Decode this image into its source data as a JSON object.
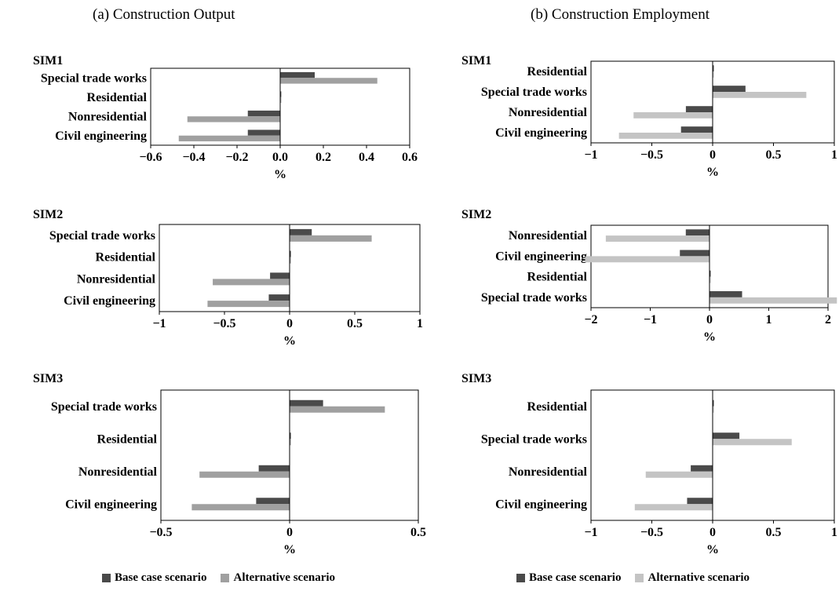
{
  "titles": {
    "left": "(a) Construction Output",
    "right": "(b) Construction Employment"
  },
  "legend": {
    "base": "Base case scenario",
    "alt": "Alternative scenario"
  },
  "colors": {
    "base": "#4a4a4a",
    "alt_output": "#a0a0a0",
    "alt_employment": "#c4c4c4"
  },
  "chart_data": [
    {
      "id": "output-sim1",
      "type": "bar",
      "orientation": "horizontal",
      "title": "SIM1",
      "xlabel": "%",
      "xlim": [
        -0.6,
        0.6
      ],
      "ticks": [
        {
          "v": -0.6,
          "t": "−0.6"
        },
        {
          "v": -0.4,
          "t": "−0.4"
        },
        {
          "v": -0.2,
          "t": "−0.2"
        },
        {
          "v": 0,
          "t": "0.0"
        },
        {
          "v": 0.2,
          "t": "0.2"
        },
        {
          "v": 0.4,
          "t": "0.4"
        },
        {
          "v": 0.6,
          "t": "0.6"
        }
      ],
      "categories": [
        "Special trade works",
        "Residential",
        "Nonresidential",
        "Civil engineering"
      ],
      "series": [
        {
          "name": "Base case scenario",
          "values": [
            0.16,
            0.005,
            -0.15,
            -0.15
          ]
        },
        {
          "name": "Alternative scenario",
          "values": [
            0.45,
            0.005,
            -0.43,
            -0.47
          ]
        }
      ]
    },
    {
      "id": "output-sim2",
      "type": "bar",
      "orientation": "horizontal",
      "title": "SIM2",
      "xlabel": "%",
      "xlim": [
        -1,
        1
      ],
      "ticks": [
        {
          "v": -1,
          "t": "−1"
        },
        {
          "v": -0.5,
          "t": "−0.5"
        },
        {
          "v": 0,
          "t": "0"
        },
        {
          "v": 0.5,
          "t": "0.5"
        },
        {
          "v": 1,
          "t": "1"
        }
      ],
      "categories": [
        "Special trade works",
        "Residential",
        "Nonresidential",
        "Civil engineering"
      ],
      "series": [
        {
          "name": "Base case scenario",
          "values": [
            0.17,
            0.01,
            -0.15,
            -0.16
          ]
        },
        {
          "name": "Alternative scenario",
          "values": [
            0.63,
            0.01,
            -0.59,
            -0.63
          ]
        }
      ]
    },
    {
      "id": "output-sim3",
      "type": "bar",
      "orientation": "horizontal",
      "title": "SIM3",
      "xlabel": "%",
      "xlim": [
        -0.5,
        0.5
      ],
      "ticks": [
        {
          "v": -0.5,
          "t": "−0.5"
        },
        {
          "v": 0,
          "t": "0"
        },
        {
          "v": 0.5,
          "t": "0.5"
        }
      ],
      "categories": [
        "Special trade works",
        "Residential",
        "Nonresidential",
        "Civil engineering"
      ],
      "series": [
        {
          "name": "Base case scenario",
          "values": [
            0.13,
            0.005,
            -0.12,
            -0.13
          ]
        },
        {
          "name": "Alternative scenario",
          "values": [
            0.37,
            0.005,
            -0.35,
            -0.38
          ]
        }
      ]
    },
    {
      "id": "employment-sim1",
      "type": "bar",
      "orientation": "horizontal",
      "title": "SIM1",
      "xlabel": "%",
      "xlim": [
        -1,
        1
      ],
      "ticks": [
        {
          "v": -1,
          "t": "−1"
        },
        {
          "v": -0.5,
          "t": "−0.5"
        },
        {
          "v": 0,
          "t": "0"
        },
        {
          "v": 0.5,
          "t": "0.5"
        },
        {
          "v": 1,
          "t": "1"
        }
      ],
      "categories": [
        "Residential",
        "Special trade works",
        "Nonresidential",
        "Civil engineering"
      ],
      "series": [
        {
          "name": "Base case scenario",
          "values": [
            0.01,
            0.27,
            -0.22,
            -0.26
          ]
        },
        {
          "name": "Alternative scenario",
          "values": [
            0.01,
            0.77,
            -0.65,
            -0.77
          ]
        }
      ]
    },
    {
      "id": "employment-sim2",
      "type": "bar",
      "orientation": "horizontal",
      "title": "SIM2",
      "xlabel": "%",
      "xlim": [
        -2,
        2
      ],
      "ticks": [
        {
          "v": -2,
          "t": "−2"
        },
        {
          "v": -1,
          "t": "−1"
        },
        {
          "v": 0,
          "t": "0"
        },
        {
          "v": 1,
          "t": "1"
        },
        {
          "v": 2,
          "t": "2"
        }
      ],
      "categories": [
        "Nonresidential",
        "Civil engineering",
        "Residential",
        "Special trade works"
      ],
      "series": [
        {
          "name": "Base case scenario",
          "values": [
            -0.4,
            -0.5,
            0.02,
            0.55
          ]
        },
        {
          "name": "Alternative scenario",
          "values": [
            -1.75,
            -2.1,
            0.02,
            2.15
          ]
        }
      ]
    },
    {
      "id": "employment-sim3",
      "type": "bar",
      "orientation": "horizontal",
      "title": "SIM3",
      "xlabel": "%",
      "xlim": [
        -1,
        1
      ],
      "ticks": [
        {
          "v": -1,
          "t": "−1"
        },
        {
          "v": -0.5,
          "t": "−0.5"
        },
        {
          "v": 0,
          "t": "0"
        },
        {
          "v": 0.5,
          "t": "0.5"
        },
        {
          "v": 1,
          "t": "1"
        }
      ],
      "categories": [
        "Residential",
        "Special trade works",
        "Nonresidential",
        "Civil engineering"
      ],
      "series": [
        {
          "name": "Base case scenario",
          "values": [
            0.01,
            0.22,
            -0.18,
            -0.21
          ]
        },
        {
          "name": "Alternative scenario",
          "values": [
            0.01,
            0.65,
            -0.55,
            -0.64
          ]
        }
      ]
    }
  ]
}
